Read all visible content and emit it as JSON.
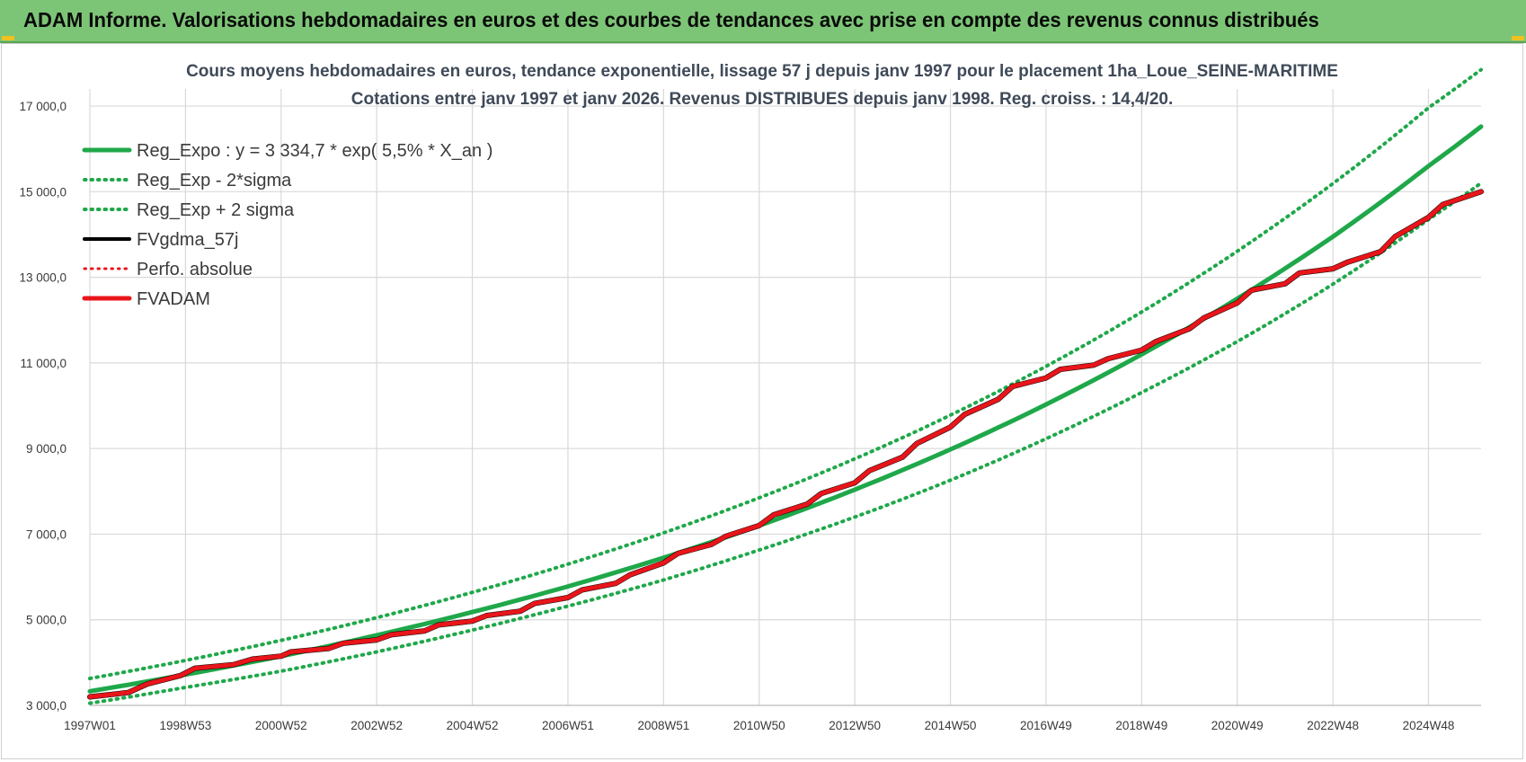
{
  "header": {
    "title": "ADAM Informe. Valorisations hebdomadaires en euros et des courbes de tendances avec prise en compte des revenus connus distribués"
  },
  "colors": {
    "header_bg": "#7cc576",
    "trend": "#1fa84a",
    "band": "#1fa84a",
    "fvgdma": "#000000",
    "perfo": "#e8151a",
    "fvadam": "#e8151a",
    "grid": "#d9d9d9"
  },
  "chart_data": {
    "type": "line",
    "title_line1": "Cours moyens hebdomadaires en euros, tendance exponentielle, lissage 57 j depuis janv 1997  pour le placement 1ha_Loue_SEINE-MARITIME",
    "title_line2": "Cotations entre janv 1997 et janv 2026. Revenus DISTRIBUES depuis janv 1998.  Reg. croiss. : 14,4/20.",
    "ylim": [
      3000,
      17400
    ],
    "yticks": [
      "3 000,0",
      "5 000,0",
      "7 000,0",
      "9 000,0",
      "11 000,0",
      "13 000,0",
      "15 000,0",
      "17 000,0"
    ],
    "ytick_values": [
      3000,
      5000,
      7000,
      9000,
      11000,
      13000,
      15000,
      17000
    ],
    "xlim": [
      1997.0,
      2026.1
    ],
    "xticks": [
      "1997W01",
      "1998W53",
      "2000W52",
      "2002W52",
      "2004W52",
      "2006W51",
      "2008W51",
      "2010W50",
      "2012W50",
      "2014W50",
      "2016W49",
      "2018W49",
      "2020W49",
      "2022W48",
      "2024W48"
    ],
    "xtick_values": [
      1997.0,
      1999.0,
      2001.0,
      2003.0,
      2005.0,
      2007.0,
      2009.0,
      2011.0,
      2013.0,
      2015.0,
      2017.0,
      2019.0,
      2021.0,
      2023.0,
      2025.0
    ],
    "grid": true,
    "legend_position": "top-left",
    "legend": [
      {
        "label": "Reg_Expo : y = 3 334,7 * exp( 5,5% *  X_an )",
        "style": "solid",
        "color": "#1fa84a",
        "width": 5
      },
      {
        "label": "Reg_Exp - 2*sigma",
        "style": "dotted",
        "color": "#1fa84a",
        "width": 4
      },
      {
        "label": "Reg_Exp + 2 sigma",
        "style": "dotted",
        "color": "#1fa84a",
        "width": 4
      },
      {
        "label": "FVgdma_57j",
        "style": "solid",
        "color": "#000000",
        "width": 4
      },
      {
        "label": "Perfo. absolue",
        "style": "dotted",
        "color": "#e8151a",
        "width": 3
      },
      {
        "label": "FVADAM",
        "style": "solid",
        "color": "#e8151a",
        "width": 5
      }
    ],
    "series": [
      {
        "name": "Reg_Expo : y = 3 334,7 * exp( 5,5% *  X_an )",
        "x": [
          1997.0,
          1999.0,
          2001.0,
          2003.0,
          2005.0,
          2007.0,
          2009.0,
          2011.0,
          2013.0,
          2015.0,
          2017.0,
          2019.0,
          2021.0,
          2023.0,
          2025.0,
          2026.1
        ],
        "y": [
          3330,
          3720,
          4150,
          4640,
          5180,
          5780,
          6450,
          7200,
          8040,
          8980,
          10030,
          11200,
          12500,
          13950,
          15600,
          16520
        ]
      },
      {
        "name": "Reg_Exp - 2*sigma",
        "x": [
          1997.0,
          1999.0,
          2001.0,
          2003.0,
          2005.0,
          2007.0,
          2009.0,
          2011.0,
          2013.0,
          2015.0,
          2017.0,
          2019.0,
          2021.0,
          2023.0,
          2025.0,
          2026.1
        ],
        "y": [
          3050,
          3420,
          3800,
          4250,
          4760,
          5320,
          5930,
          6630,
          7400,
          8260,
          9230,
          10310,
          11500,
          12840,
          14350,
          15200
        ]
      },
      {
        "name": "Reg_Exp + 2 sigma",
        "x": [
          1997.0,
          1999.0,
          2001.0,
          2003.0,
          2005.0,
          2007.0,
          2009.0,
          2011.0,
          2013.0,
          2015.0,
          2017.0,
          2019.0,
          2021.0,
          2023.0,
          2025.0,
          2026.1
        ],
        "y": [
          3630,
          4050,
          4520,
          5050,
          5640,
          6300,
          7030,
          7850,
          8760,
          9780,
          10920,
          12190,
          13610,
          15190,
          16960,
          17850
        ]
      },
      {
        "name": "FVgdma_57j",
        "x": [
          1997.0,
          1997.8,
          1998.2,
          1998.9,
          1999.2,
          2000.0,
          2000.4,
          2001.0,
          2001.2,
          2002.0,
          2002.3,
          2003.0,
          2003.3,
          2004.0,
          2004.3,
          2005.0,
          2005.3,
          2006.0,
          2006.3,
          2007.0,
          2007.3,
          2008.0,
          2008.3,
          2009.0,
          2009.3,
          2010.0,
          2010.3,
          2011.0,
          2011.3,
          2012.0,
          2012.3,
          2013.0,
          2013.3,
          2014.0,
          2014.3,
          2015.0,
          2015.3,
          2016.0,
          2016.3,
          2017.0,
          2017.3,
          2018.0,
          2018.3,
          2019.0,
          2019.3,
          2020.0,
          2020.3,
          2021.0,
          2021.3,
          2022.0,
          2022.3,
          2023.0,
          2023.3,
          2024.0,
          2024.3,
          2025.0,
          2025.3,
          2026.1
        ],
        "y": [
          3200,
          3300,
          3500,
          3700,
          3870,
          3950,
          4080,
          4150,
          4250,
          4330,
          4450,
          4530,
          4650,
          4740,
          4880,
          4970,
          5100,
          5200,
          5380,
          5520,
          5700,
          5850,
          6050,
          6330,
          6550,
          6760,
          6950,
          7200,
          7450,
          7700,
          7950,
          8200,
          8480,
          8800,
          9120,
          9500,
          9800,
          10150,
          10450,
          10650,
          10850,
          10950,
          11100,
          11300,
          11500,
          11800,
          12050,
          12400,
          12700,
          12850,
          13100,
          13200,
          13350,
          13600,
          13950,
          14400,
          14700,
          15000
        ]
      },
      {
        "name": "Perfo. absolue",
        "x": [
          1997.0,
          1997.8,
          1998.2,
          1998.9,
          1999.2,
          2000.0,
          2000.4,
          2001.0,
          2001.2,
          2002.0,
          2002.3,
          2003.0,
          2003.3,
          2004.0,
          2004.3,
          2005.0,
          2005.3,
          2006.0,
          2006.3,
          2007.0,
          2007.3,
          2008.0,
          2008.3,
          2009.0,
          2009.3,
          2010.0,
          2010.3,
          2011.0,
          2011.3,
          2012.0,
          2012.3,
          2013.0,
          2013.3,
          2014.0,
          2014.3,
          2015.0,
          2015.3,
          2016.0,
          2016.3,
          2017.0,
          2017.3,
          2018.0,
          2018.3,
          2019.0,
          2019.3,
          2020.0,
          2020.3,
          2021.0,
          2021.3,
          2022.0,
          2022.3,
          2023.0,
          2023.3,
          2024.0,
          2024.3,
          2025.0,
          2025.3,
          2026.1
        ],
        "y": [
          3200,
          3300,
          3500,
          3700,
          3870,
          3950,
          4080,
          4150,
          4250,
          4330,
          4450,
          4530,
          4650,
          4740,
          4880,
          4970,
          5100,
          5200,
          5380,
          5520,
          5700,
          5850,
          6050,
          6330,
          6550,
          6760,
          6950,
          7200,
          7450,
          7700,
          7950,
          8200,
          8480,
          8800,
          9120,
          9500,
          9800,
          10150,
          10450,
          10650,
          10850,
          10950,
          11100,
          11300,
          11500,
          11800,
          12050,
          12400,
          12700,
          12850,
          13100,
          13200,
          13350,
          13600,
          13950,
          14400,
          14700,
          15000
        ]
      },
      {
        "name": "FVADAM",
        "x": [
          1997.0,
          1997.8,
          1998.2,
          1998.9,
          1999.2,
          2000.0,
          2000.4,
          2001.0,
          2001.2,
          2002.0,
          2002.3,
          2003.0,
          2003.3,
          2004.0,
          2004.3,
          2005.0,
          2005.3,
          2006.0,
          2006.3,
          2007.0,
          2007.3,
          2008.0,
          2008.3,
          2009.0,
          2009.3,
          2010.0,
          2010.3,
          2011.0,
          2011.3,
          2012.0,
          2012.3,
          2013.0,
          2013.3,
          2014.0,
          2014.3,
          2015.0,
          2015.3,
          2016.0,
          2016.3,
          2017.0,
          2017.3,
          2018.0,
          2018.3,
          2019.0,
          2019.3,
          2020.0,
          2020.3,
          2021.0,
          2021.3,
          2022.0,
          2022.3,
          2023.0,
          2023.3,
          2024.0,
          2024.3,
          2025.0,
          2025.3,
          2026.1
        ],
        "y": [
          3200,
          3300,
          3500,
          3700,
          3870,
          3950,
          4080,
          4150,
          4250,
          4330,
          4450,
          4530,
          4650,
          4740,
          4880,
          4970,
          5100,
          5200,
          5380,
          5520,
          5700,
          5850,
          6050,
          6330,
          6550,
          6760,
          6950,
          7200,
          7450,
          7700,
          7950,
          8200,
          8480,
          8800,
          9120,
          9500,
          9800,
          10150,
          10450,
          10650,
          10850,
          10950,
          11100,
          11300,
          11500,
          11800,
          12050,
          12400,
          12700,
          12850,
          13100,
          13200,
          13350,
          13600,
          13950,
          14400,
          14700,
          15000
        ]
      }
    ]
  }
}
